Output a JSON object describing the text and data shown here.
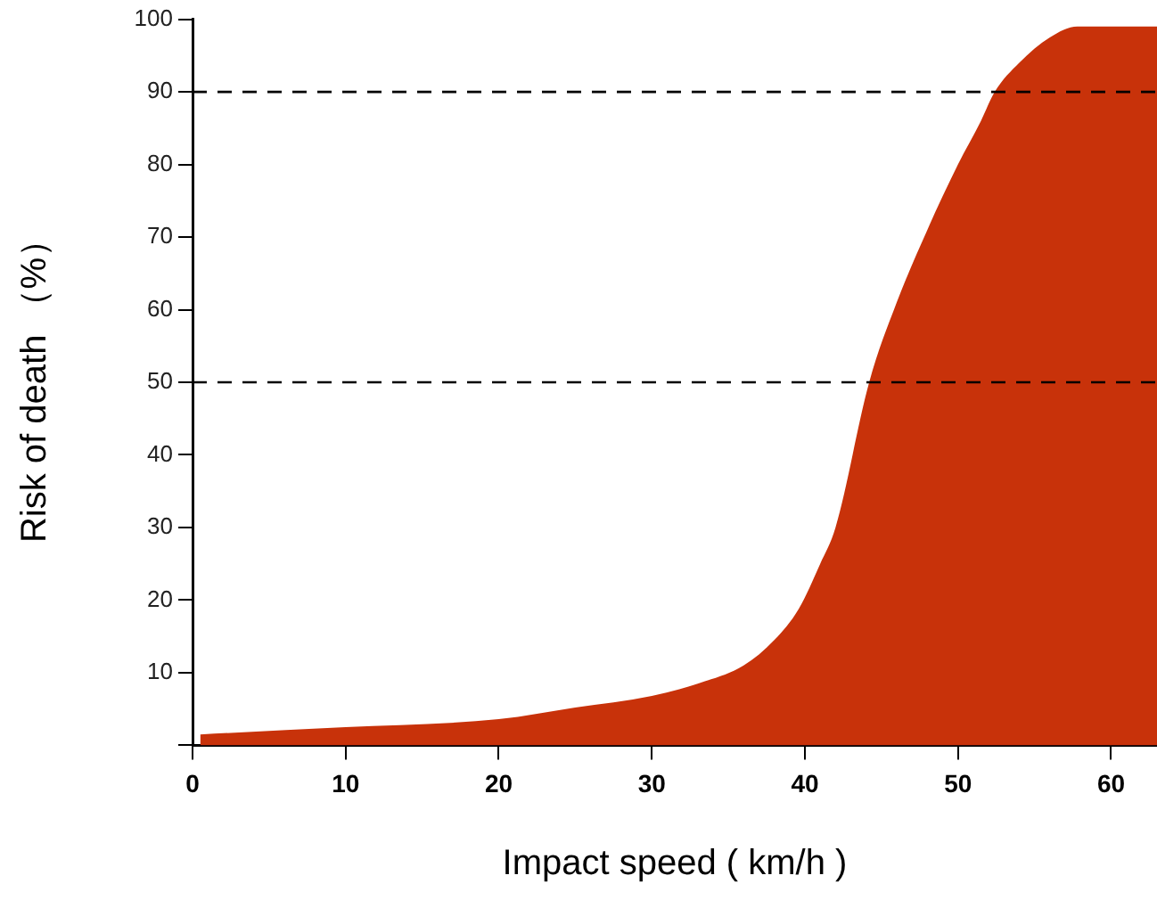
{
  "chart_data": {
    "type": "area",
    "xlabel": "Impact speed ( km/h )",
    "ylabel": "Risk of death （%）",
    "series": [
      {
        "color": "#c8320a",
        "x": [
          0.5,
          10,
          20,
          25,
          30,
          33,
          36,
          38,
          39.6,
          41,
          42,
          44.2,
          46,
          48,
          50,
          51.5,
          52.4,
          54,
          56,
          57.8,
          63
        ],
        "values": [
          1.5,
          2.5,
          3.6,
          5.2,
          6.8,
          8.5,
          11,
          14.5,
          18.8,
          25,
          30,
          50,
          61,
          71,
          80,
          86,
          90,
          94,
          97.5,
          99,
          99
        ]
      }
    ],
    "xlim": [
      0,
      63
    ],
    "xticks": [
      0,
      10,
      20,
      30,
      40,
      50,
      60
    ],
    "ylim": [
      0,
      100
    ],
    "yticks": [
      {
        "value": 0,
        "label": null
      },
      10,
      20,
      30,
      40,
      50,
      60,
      70,
      80,
      90,
      100
    ],
    "ref_lines": [
      {
        "axis": "y",
        "value": 50,
        "color": "#000000",
        "line_style": "dashed"
      },
      {
        "axis": "y",
        "value": 90,
        "color": "#000000",
        "line_style": "dashed"
      }
    ],
    "grid": false,
    "legend": false
  }
}
